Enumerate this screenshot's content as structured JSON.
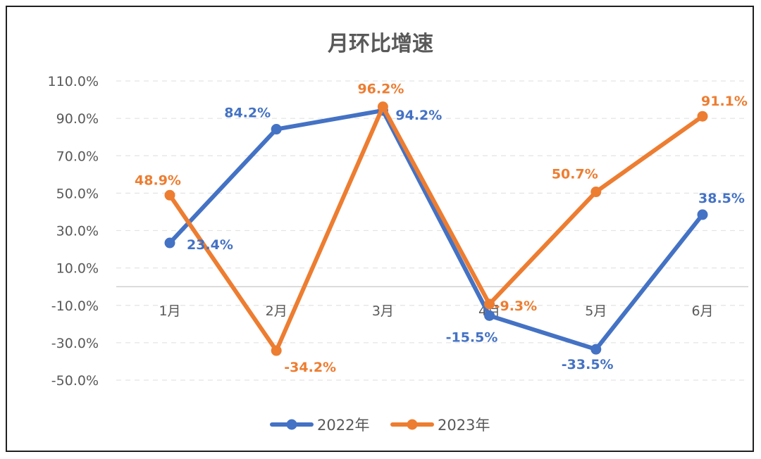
{
  "chart_data": {
    "type": "line",
    "title": "月环比增速",
    "categories": [
      "1月",
      "2月",
      "3月",
      "4月",
      "5月",
      "6月"
    ],
    "ylim": [
      -50,
      110
    ],
    "yticks": [
      "110.0%",
      "90.0%",
      "70.0%",
      "50.0%",
      "30.0%",
      "10.0%",
      "-10.0%",
      "-30.0%",
      "-50.0%"
    ],
    "ytick_values": [
      110,
      90,
      70,
      50,
      30,
      10,
      -10,
      -30,
      -50
    ],
    "grid": true,
    "legend_position": "bottom",
    "series": [
      {
        "name": "2022年",
        "color": "#4472C4",
        "values": [
          23.4,
          84.2,
          94.2,
          -15.5,
          -33.5,
          38.5
        ],
        "labels": [
          "23.4%",
          "84.2%",
          "94.2%",
          "-15.5%",
          "-33.5%",
          "38.5%"
        ]
      },
      {
        "name": "2023年",
        "color": "#ED7D31",
        "values": [
          48.9,
          -34.2,
          96.2,
          -9.3,
          50.7,
          91.1
        ],
        "labels": [
          "48.9%",
          "-34.2%",
          "96.2%",
          "-9.3%",
          "50.7%",
          "91.1%"
        ]
      }
    ]
  }
}
